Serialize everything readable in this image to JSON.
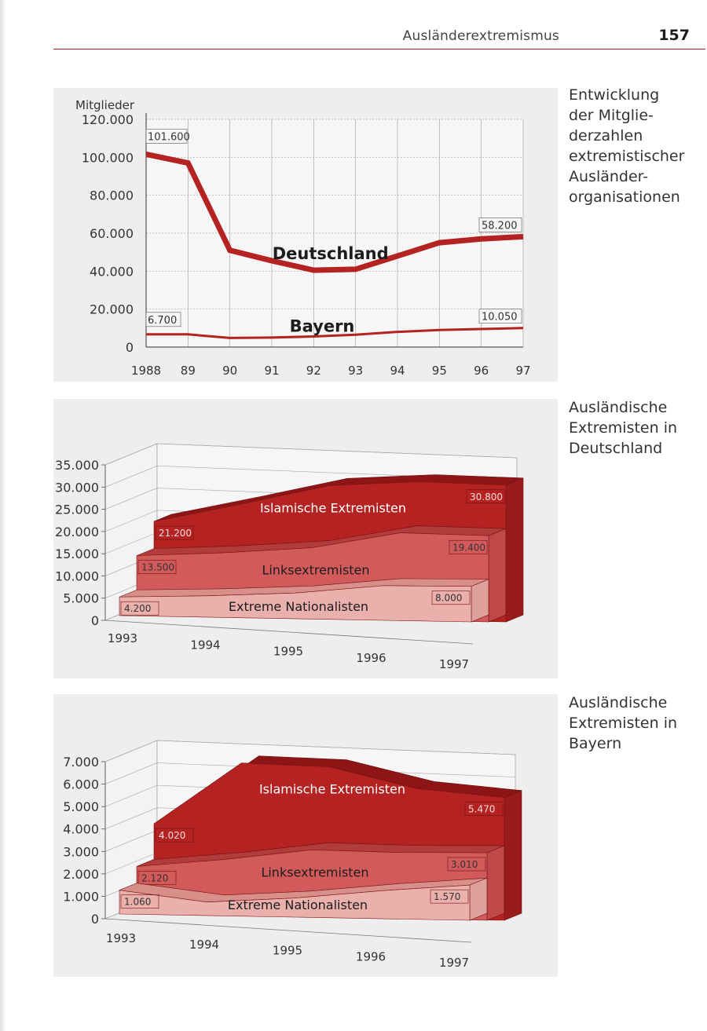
{
  "header": {
    "title": "Ausländerextremismus",
    "page_number": "157"
  },
  "captions": [
    {
      "lines": [
        "Entwicklung",
        "der Mitglie-",
        "derzahlen",
        "extremistischer",
        "Ausländer-",
        "organisationen"
      ]
    },
    {
      "lines": [
        "Ausländische",
        "Extremisten in",
        "Deutschland"
      ]
    },
    {
      "lines": [
        "Ausländische",
        "Extremisten in",
        "Bayern"
      ]
    }
  ],
  "colors": {
    "accent_red": "#b21b1b",
    "dark_series": "#b52222",
    "mid_series": "#d35a5a",
    "light_series": "#eab0ac",
    "panel_bg": "#eeeeee"
  },
  "chart_data": [
    {
      "type": "line",
      "title": "",
      "ylabel": "Mitglieder",
      "x": [
        "1988",
        "89",
        "90",
        "91",
        "92",
        "93",
        "94",
        "95",
        "96",
        "97"
      ],
      "yticks": [
        "0",
        "20.000",
        "40.000",
        "60.000",
        "80.000",
        "100.000",
        "120.000"
      ],
      "ylim": [
        0,
        120000
      ],
      "grid": true,
      "series": [
        {
          "name": "Deutschland",
          "values": [
            101600,
            97000,
            51000,
            45500,
            40500,
            41000,
            48000,
            55000,
            57000,
            58200
          ],
          "first_label": "101.600",
          "last_label": "58.200"
        },
        {
          "name": "Bayern",
          "values": [
            6700,
            6700,
            4800,
            5000,
            5600,
            6500,
            8000,
            9000,
            9500,
            10050
          ],
          "first_label": "6.700",
          "last_label": "10.050"
        }
      ]
    },
    {
      "type": "area",
      "title": "",
      "x": [
        "1993",
        "1994",
        "1995",
        "1996",
        "1997"
      ],
      "yticks": [
        "0",
        "5.000",
        "10.000",
        "15.000",
        "20.000",
        "25.000",
        "30.000",
        "35.000"
      ],
      "ylim": [
        0,
        35000
      ],
      "series": [
        {
          "name": "Islamische Extremisten",
          "values": [
            21200,
            25500,
            30000,
            31200,
            30800
          ],
          "first_label": "21.200",
          "last_label": "30.800"
        },
        {
          "name": "Linksextremisten",
          "values": [
            13500,
            14500,
            16000,
            19700,
            19400
          ],
          "first_label": "13.500",
          "last_label": "19.400"
        },
        {
          "name": "Extreme Nationalisten",
          "values": [
            4200,
            4800,
            5800,
            7800,
            8000
          ],
          "first_label": "4.200",
          "last_label": "8.000"
        }
      ]
    },
    {
      "type": "area",
      "title": "",
      "x": [
        "1993",
        "1994",
        "1995",
        "1996",
        "1997"
      ],
      "yticks": [
        "0",
        "1.000",
        "2.000",
        "3.000",
        "4.000",
        "5.000",
        "6.000",
        "7.000"
      ],
      "ylim": [
        0,
        7000
      ],
      "series": [
        {
          "name": "Islamische Extremisten",
          "values": [
            4020,
            6800,
            6700,
            5800,
            5470
          ],
          "first_label": "4.020",
          "last_label": "5.470"
        },
        {
          "name": "Linksextremisten",
          "values": [
            2120,
            2500,
            3000,
            2950,
            3010
          ],
          "first_label": "2.120",
          "last_label": "3.010"
        },
        {
          "name": "Extreme Nationalisten",
          "values": [
            1060,
            600,
            850,
            1250,
            1570
          ],
          "first_label": "1.060",
          "last_label": "1.570"
        }
      ]
    }
  ]
}
